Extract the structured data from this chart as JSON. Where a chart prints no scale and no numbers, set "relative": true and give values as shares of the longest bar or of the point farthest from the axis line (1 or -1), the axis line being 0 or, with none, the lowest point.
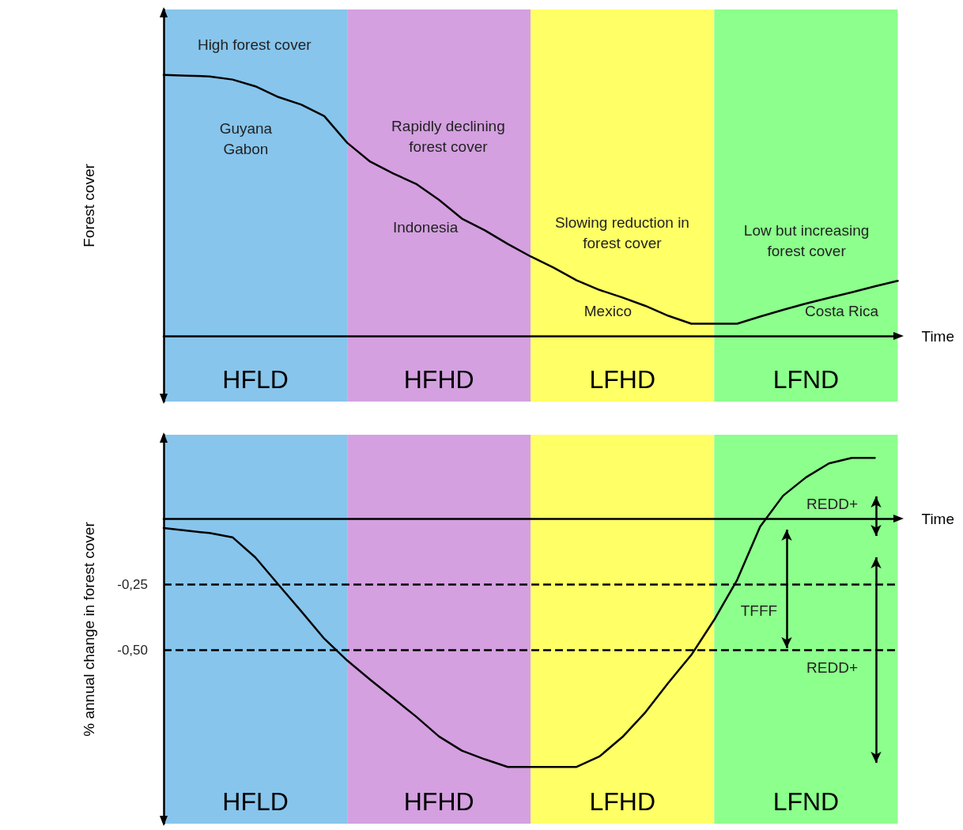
{
  "chart_data": [
    {
      "type": "line",
      "relative": true,
      "xlabel": "Time",
      "ylabel": "Forest cover",
      "tick_labels": false,
      "grid": false,
      "marker": "none",
      "line_style": "solid",
      "categories": [
        null,
        null,
        null,
        null,
        null,
        null,
        null,
        null,
        null,
        null,
        null,
        null,
        null,
        null,
        null,
        null,
        null,
        null,
        null,
        null,
        null,
        null,
        null,
        null,
        null,
        null,
        null,
        null,
        null,
        null,
        null,
        null,
        null
      ],
      "series": [
        {
          "color": "#000000",
          "values": [
            1.0,
            0.997,
            0.994,
            0.982,
            0.956,
            0.915,
            0.886,
            0.842,
            0.74,
            0.668,
            0.623,
            0.583,
            0.522,
            0.45,
            0.405,
            0.353,
            0.305,
            0.262,
            0.214,
            0.177,
            0.148,
            0.116,
            0.078,
            0.048,
            0.048,
            0.048,
            0.075,
            0.101,
            0.125,
            0.147,
            0.168,
            0.191,
            0.212
          ]
        }
      ],
      "annotations": [
        "HFLD",
        "HFHD",
        "LFHD",
        "LFND",
        "High forest cover",
        "Guyana\nGabon",
        "Rapidly declining\nforest cover",
        "Indonesia",
        "Slowing reduction in\nforest cover",
        "Mexico",
        "Low but increasing\nforest cover",
        "Costa Rica"
      ]
    },
    {
      "type": "line",
      "xlabel": "Time",
      "ylabel": "% annual change in forest cover",
      "ylim": [
        -1.16,
        0.32
      ],
      "yticks": [
        {
          "value": -0.25,
          "label": "-0,25"
        },
        {
          "value": -0.5,
          "label": "-0,50"
        }
      ],
      "tick_labels": "y",
      "grid": false,
      "marker": "none",
      "line_style": "solid",
      "categories": [
        null,
        null,
        null,
        null,
        null,
        null,
        null,
        null,
        null,
        null,
        null,
        null,
        null,
        null,
        null,
        null,
        null,
        null,
        null,
        null,
        null,
        null,
        null,
        null,
        null,
        null,
        null,
        null,
        null,
        null,
        null,
        null,
        null
      ],
      "series": [
        {
          "color": "#000000",
          "values": [
            -0.035,
            -0.045,
            -0.054,
            -0.07,
            -0.147,
            -0.25,
            -0.352,
            -0.456,
            -0.539,
            -0.612,
            -0.682,
            -0.752,
            -0.828,
            -0.882,
            -0.915,
            -0.944,
            -0.944,
            -0.944,
            -0.944,
            -0.904,
            -0.83,
            -0.736,
            -0.624,
            -0.518,
            -0.384,
            -0.232,
            -0.03,
            0.088,
            0.158,
            0.211,
            0.232,
            0.232,
            null
          ]
        }
      ],
      "ref_lines": [
        {
          "axis": "y",
          "value": -0.25,
          "color": "#000000",
          "line_style": "dashed"
        },
        {
          "axis": "y",
          "value": -0.5,
          "color": "#000000",
          "line_style": "dashed"
        }
      ],
      "annotations": [
        "HFLD",
        "HFHD",
        "LFHD",
        "LFND",
        "REDD+",
        "TFFF",
        "REDD+"
      ]
    }
  ]
}
